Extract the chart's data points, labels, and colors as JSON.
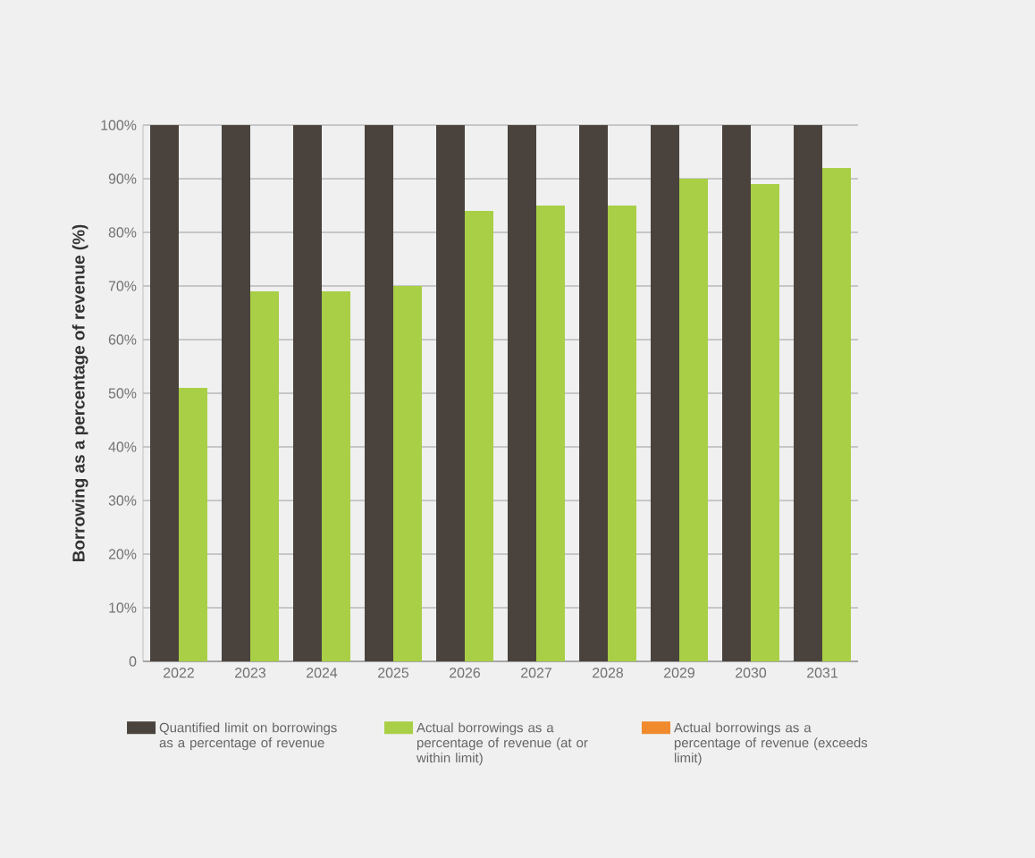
{
  "chart_data": {
    "type": "bar",
    "ylabel": "Borrowing as a percentage of revenue  (%)",
    "categories": [
      "2022",
      "2023",
      "2024",
      "2025",
      "2026",
      "2027",
      "2028",
      "2029",
      "2030",
      "2031"
    ],
    "series": [
      {
        "name": "Quantified limit on borrowings as a percentage of revenue",
        "color": "#4a433d",
        "values": [
          100,
          100,
          100,
          100,
          100,
          100,
          100,
          100,
          100,
          100
        ]
      },
      {
        "name": "Actual borrowings as a percentage of revenue (at or within limit)",
        "color": "#a8cf45",
        "values": [
          51,
          69,
          69,
          70,
          84,
          85,
          85,
          90,
          89,
          92
        ]
      },
      {
        "name": "Actual borrowings as a percentage of revenue (exceeds limit)",
        "color": "#f08a2c",
        "values": [
          null,
          null,
          null,
          null,
          null,
          null,
          null,
          null,
          null,
          null
        ]
      }
    ],
    "ylim": [
      0,
      100
    ],
    "yticks": [
      0,
      {
        "value": 10,
        "label": "10%"
      },
      {
        "value": 20,
        "label": "20%"
      },
      {
        "value": 30,
        "label": "30%"
      },
      {
        "value": 40,
        "label": "40%"
      },
      {
        "value": 50,
        "label": "50%"
      },
      {
        "value": 60,
        "label": "60%"
      },
      {
        "value": 70,
        "label": "70%"
      },
      {
        "value": 80,
        "label": "80%"
      },
      {
        "value": 90,
        "label": "90%"
      },
      {
        "value": 100,
        "label": "100%"
      }
    ],
    "grid": "y",
    "legend": "bottom"
  }
}
